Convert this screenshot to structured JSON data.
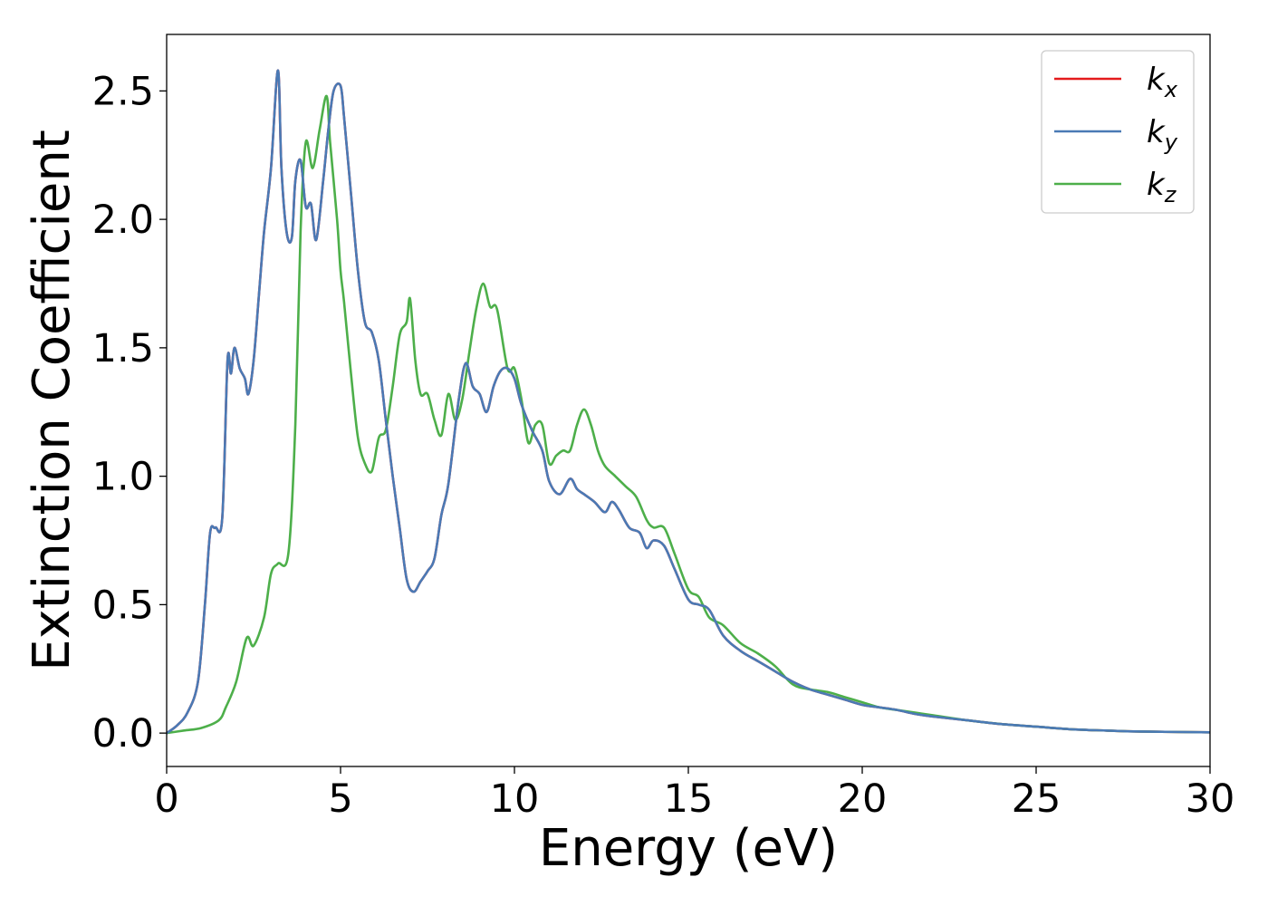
{
  "chart_data": {
    "type": "line",
    "xlabel": "Energy (eV)",
    "ylabel": "Extinction Coefficient",
    "xlim": [
      0,
      30
    ],
    "ylim": [
      -0.13,
      2.72
    ],
    "xticks": [
      0,
      5,
      10,
      15,
      20,
      25,
      30
    ],
    "xtick_labels": [
      "0",
      "5",
      "10",
      "15",
      "20",
      "25",
      "30"
    ],
    "yticks": [
      0.0,
      0.5,
      1.0,
      1.5,
      2.0,
      2.5
    ],
    "ytick_labels": [
      "0.0",
      "0.5",
      "1.0",
      "1.5",
      "2.0",
      "2.5"
    ],
    "grid": false,
    "legend_position": "top-right",
    "series": [
      {
        "name": "kx",
        "base": "k",
        "sub": "x",
        "color": "#e41a1c",
        "x": [
          0,
          0.3,
          0.6,
          0.9,
          1.1,
          1.25,
          1.4,
          1.6,
          1.75,
          1.85,
          1.95,
          2.1,
          2.25,
          2.35,
          2.5,
          2.65,
          2.8,
          3.0,
          3.2,
          3.3,
          3.45,
          3.6,
          3.7,
          3.85,
          4.0,
          4.15,
          4.3,
          4.5,
          4.65,
          4.8,
          5.0,
          5.1,
          5.3,
          5.5,
          5.7,
          5.9,
          6.1,
          6.3,
          6.5,
          6.7,
          6.9,
          7.1,
          7.3,
          7.5,
          7.7,
          7.9,
          8.1,
          8.4,
          8.6,
          8.8,
          9.0,
          9.2,
          9.4,
          9.6,
          9.8,
          10.0,
          10.2,
          10.5,
          10.8,
          11.0,
          11.3,
          11.6,
          11.8,
          12.0,
          12.3,
          12.6,
          12.8,
          13.0,
          13.3,
          13.6,
          13.8,
          14.0,
          14.3,
          14.6,
          15.0,
          15.3,
          15.6,
          16.0,
          16.5,
          17.0,
          17.5,
          18.0,
          18.5,
          19.0,
          19.5,
          20.0,
          20.5,
          21.0,
          21.5,
          22.0,
          23.0,
          24.0,
          25.0,
          26.0,
          27.0,
          28.0,
          30.0
        ],
        "y": [
          0.0,
          0.03,
          0.08,
          0.2,
          0.5,
          0.78,
          0.8,
          0.84,
          1.45,
          1.4,
          1.5,
          1.42,
          1.38,
          1.32,
          1.45,
          1.7,
          1.95,
          2.2,
          2.58,
          2.2,
          1.95,
          1.93,
          2.15,
          2.23,
          2.05,
          2.06,
          1.92,
          2.15,
          2.35,
          2.5,
          2.52,
          2.4,
          2.1,
          1.8,
          1.6,
          1.56,
          1.45,
          1.22,
          1.0,
          0.8,
          0.6,
          0.55,
          0.59,
          0.63,
          0.68,
          0.85,
          0.97,
          1.3,
          1.44,
          1.35,
          1.32,
          1.25,
          1.35,
          1.41,
          1.42,
          1.38,
          1.28,
          1.18,
          1.1,
          0.98,
          0.93,
          0.99,
          0.95,
          0.93,
          0.9,
          0.86,
          0.9,
          0.87,
          0.8,
          0.78,
          0.72,
          0.75,
          0.73,
          0.64,
          0.52,
          0.5,
          0.48,
          0.38,
          0.32,
          0.28,
          0.24,
          0.2,
          0.17,
          0.15,
          0.13,
          0.11,
          0.1,
          0.09,
          0.075,
          0.065,
          0.05,
          0.035,
          0.025,
          0.015,
          0.01,
          0.006,
          0.003
        ]
      },
      {
        "name": "ky",
        "base": "k",
        "sub": "y",
        "color": "#4a7ab5",
        "x": [
          0,
          0.3,
          0.6,
          0.9,
          1.1,
          1.25,
          1.4,
          1.6,
          1.75,
          1.85,
          1.95,
          2.1,
          2.25,
          2.35,
          2.5,
          2.65,
          2.8,
          3.0,
          3.2,
          3.3,
          3.45,
          3.6,
          3.7,
          3.85,
          4.0,
          4.15,
          4.3,
          4.5,
          4.65,
          4.8,
          5.0,
          5.1,
          5.3,
          5.5,
          5.7,
          5.9,
          6.1,
          6.3,
          6.5,
          6.7,
          6.9,
          7.1,
          7.3,
          7.5,
          7.7,
          7.9,
          8.1,
          8.4,
          8.6,
          8.8,
          9.0,
          9.2,
          9.4,
          9.6,
          9.8,
          10.0,
          10.2,
          10.5,
          10.8,
          11.0,
          11.3,
          11.6,
          11.8,
          12.0,
          12.3,
          12.6,
          12.8,
          13.0,
          13.3,
          13.6,
          13.8,
          14.0,
          14.3,
          14.6,
          15.0,
          15.3,
          15.6,
          16.0,
          16.5,
          17.0,
          17.5,
          18.0,
          18.5,
          19.0,
          19.5,
          20.0,
          20.5,
          21.0,
          21.5,
          22.0,
          23.0,
          24.0,
          25.0,
          26.0,
          27.0,
          28.0,
          30.0
        ],
        "y": [
          0.0,
          0.03,
          0.08,
          0.2,
          0.5,
          0.78,
          0.8,
          0.84,
          1.45,
          1.4,
          1.5,
          1.42,
          1.38,
          1.32,
          1.45,
          1.7,
          1.95,
          2.2,
          2.58,
          2.2,
          1.95,
          1.93,
          2.15,
          2.23,
          2.05,
          2.06,
          1.92,
          2.15,
          2.35,
          2.5,
          2.52,
          2.4,
          2.1,
          1.8,
          1.6,
          1.56,
          1.45,
          1.22,
          1.0,
          0.8,
          0.6,
          0.55,
          0.59,
          0.63,
          0.68,
          0.85,
          0.97,
          1.3,
          1.44,
          1.35,
          1.32,
          1.25,
          1.35,
          1.41,
          1.42,
          1.38,
          1.28,
          1.18,
          1.1,
          0.98,
          0.93,
          0.99,
          0.95,
          0.93,
          0.9,
          0.86,
          0.9,
          0.87,
          0.8,
          0.78,
          0.72,
          0.75,
          0.73,
          0.64,
          0.52,
          0.5,
          0.48,
          0.38,
          0.32,
          0.28,
          0.24,
          0.2,
          0.17,
          0.15,
          0.13,
          0.11,
          0.1,
          0.09,
          0.075,
          0.065,
          0.05,
          0.035,
          0.025,
          0.015,
          0.01,
          0.006,
          0.003
        ]
      },
      {
        "name": "kz",
        "base": "k",
        "sub": "z",
        "color": "#4daf4a",
        "x": [
          0,
          0.5,
          1.0,
          1.5,
          1.7,
          2.0,
          2.3,
          2.5,
          2.8,
          3.0,
          3.2,
          3.5,
          3.7,
          3.85,
          4.0,
          4.2,
          4.4,
          4.6,
          4.7,
          4.9,
          5.0,
          5.1,
          5.3,
          5.5,
          5.7,
          5.9,
          6.1,
          6.3,
          6.5,
          6.7,
          6.9,
          7.0,
          7.15,
          7.3,
          7.5,
          7.7,
          7.9,
          8.1,
          8.3,
          8.5,
          8.7,
          8.9,
          9.1,
          9.3,
          9.5,
          9.8,
          10.0,
          10.2,
          10.4,
          10.6,
          10.8,
          11.0,
          11.2,
          11.4,
          11.6,
          11.8,
          12.0,
          12.2,
          12.4,
          12.6,
          12.9,
          13.2,
          13.5,
          13.8,
          14.0,
          14.3,
          14.6,
          15.0,
          15.3,
          15.6,
          16.0,
          16.5,
          17.0,
          17.5,
          18.0,
          18.5,
          19.0,
          19.5,
          20.0,
          20.5,
          21.0,
          21.5,
          22.0,
          23.0,
          24.0,
          25.0,
          26.0,
          27.0,
          28.0,
          30.0
        ],
        "y": [
          0.0,
          0.01,
          0.02,
          0.05,
          0.1,
          0.2,
          0.37,
          0.34,
          0.45,
          0.62,
          0.66,
          0.7,
          1.2,
          1.95,
          2.3,
          2.2,
          2.35,
          2.48,
          2.3,
          2.0,
          1.8,
          1.68,
          1.4,
          1.15,
          1.05,
          1.02,
          1.15,
          1.18,
          1.35,
          1.55,
          1.6,
          1.69,
          1.45,
          1.32,
          1.32,
          1.22,
          1.16,
          1.32,
          1.22,
          1.3,
          1.48,
          1.65,
          1.75,
          1.66,
          1.65,
          1.42,
          1.42,
          1.3,
          1.13,
          1.2,
          1.2,
          1.05,
          1.08,
          1.1,
          1.1,
          1.2,
          1.26,
          1.2,
          1.1,
          1.04,
          1.0,
          0.96,
          0.92,
          0.83,
          0.8,
          0.8,
          0.7,
          0.56,
          0.53,
          0.45,
          0.42,
          0.35,
          0.31,
          0.26,
          0.19,
          0.17,
          0.16,
          0.14,
          0.12,
          0.1,
          0.09,
          0.08,
          0.07,
          0.05,
          0.035,
          0.025,
          0.015,
          0.01,
          0.006,
          0.003
        ]
      }
    ]
  }
}
